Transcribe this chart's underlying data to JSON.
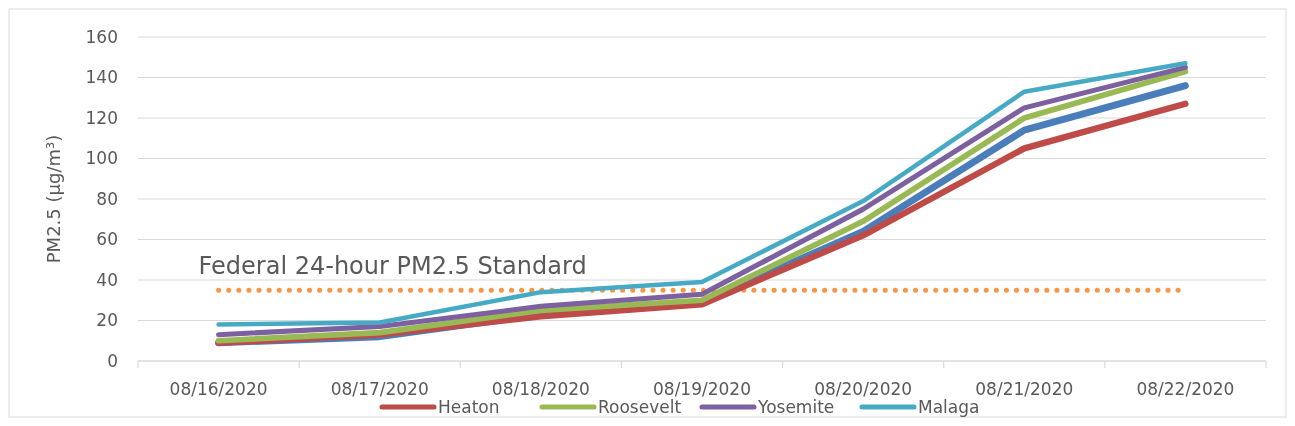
{
  "chart_data": {
    "type": "line",
    "ylabel": "PM2.5 (µg/m³)",
    "categories": [
      "08/16/2020",
      "08/17/2020",
      "08/18/2020",
      "08/19/2020",
      "08/20/2020",
      "08/21/2020",
      "08/22/2020"
    ],
    "series": [
      {
        "color": "#4a7ebb",
        "values": [
          9,
          12,
          23,
          29,
          64,
          114,
          136
        ]
      },
      {
        "name": "Heaton",
        "color": "#be4b48",
        "values": [
          9,
          13,
          22,
          28,
          62,
          105,
          127
        ]
      },
      {
        "name": "Roosevelt",
        "color": "#98b954",
        "values": [
          10,
          14,
          25,
          30,
          69,
          120,
          143
        ]
      },
      {
        "name": "Yosemite",
        "color": "#7d60a0",
        "values": [
          13,
          17,
          27,
          33,
          75,
          125,
          145
        ]
      },
      {
        "name": "Malaga",
        "color": "#46aac5",
        "values": [
          18,
          19,
          34,
          39,
          79,
          133,
          147
        ]
      }
    ],
    "ylim": [
      0,
      160
    ],
    "yticks": [
      0,
      20,
      40,
      60,
      80,
      100,
      120,
      140,
      160
    ],
    "grid": "y",
    "legend": "bottom",
    "marker": "none",
    "line_style": "solid",
    "ref_lines": [
      {
        "axis": "y",
        "value": 35,
        "label": "Federal 24-hour PM2.5 Standard",
        "color": "#f79646",
        "line_style": "dotted"
      }
    ]
  }
}
